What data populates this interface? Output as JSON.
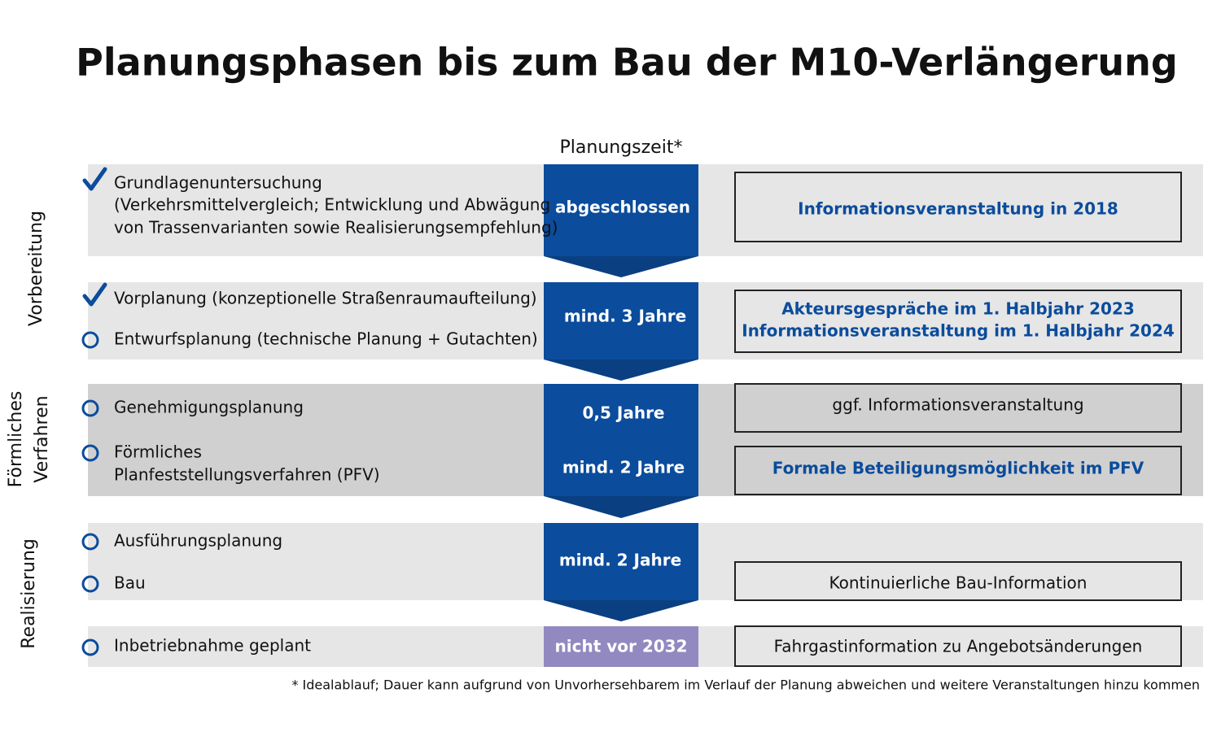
{
  "header": {
    "title": "Planungsphasen bis zum Bau der M10-Verlängerung",
    "column_header": "Planungszeit*"
  },
  "phases": [
    {
      "lines": [
        "Vorbereitung"
      ]
    },
    {
      "lines": [
        "Förmliches",
        "Verfahren"
      ]
    },
    {
      "lines": [
        "Realisierung"
      ]
    }
  ],
  "blocks": [
    {
      "steps": [
        {
          "lines": [
            "Grundlagenuntersuchung",
            "(Verkehrsmittelvergleich; Entwicklung und Abwägung",
            "von Trassenvarianten sowie Realisierungsempfehlung)"
          ]
        }
      ],
      "durations": [
        "abgeschlossen"
      ],
      "info": [
        {
          "lines": [
            "Informationsveranstaltung in 2018"
          ]
        }
      ]
    },
    {
      "steps": [
        {
          "lines": [
            "Vorplanung (konzeptionelle Straßenraumaufteilung)"
          ]
        },
        {
          "lines": [
            "Entwurfsplanung (technische Planung + Gutachten)"
          ]
        }
      ],
      "durations": [
        "mind. 3 Jahre"
      ],
      "info": [
        {
          "lines": [
            "Akteursgespräche im 1. Halbjahr 2023",
            "Informationsveranstaltung im 1. Halbjahr 2024"
          ]
        }
      ]
    },
    {
      "steps": [
        {
          "lines": [
            "Genehmigungsplanung"
          ]
        },
        {
          "lines": [
            "Förmliches",
            "Planfeststellungsverfahren (PFV)"
          ]
        }
      ],
      "durations": [
        "0,5 Jahre",
        "mind. 2 Jahre"
      ],
      "info": [
        {
          "lines": [
            "ggf. Informationsveranstaltung"
          ]
        },
        {
          "lines": [
            "Formale Beteiligungsmöglichkeit im PFV"
          ]
        }
      ]
    },
    {
      "steps": [
        {
          "lines": [
            "Ausführungsplanung"
          ]
        },
        {
          "lines": [
            "Bau"
          ]
        }
      ],
      "durations": [
        "mind. 2 Jahre"
      ],
      "info": [
        {
          "lines": [
            "Kontinuierliche Bau-Information"
          ]
        }
      ]
    },
    {
      "steps": [
        {
          "lines": [
            "Inbetriebnahme geplant"
          ]
        }
      ],
      "durations": [
        "nicht vor 2032"
      ],
      "info": [
        {
          "lines": [
            "Fahrgastinformation zu Angebotsänderungen"
          ]
        }
      ]
    }
  ],
  "footnote": "* Idealablauf; Dauer kann aufgrund von Unvorhersehbarem im Verlauf der Planung abweichen und weitere Veranstaltungen hinzu kommen"
}
